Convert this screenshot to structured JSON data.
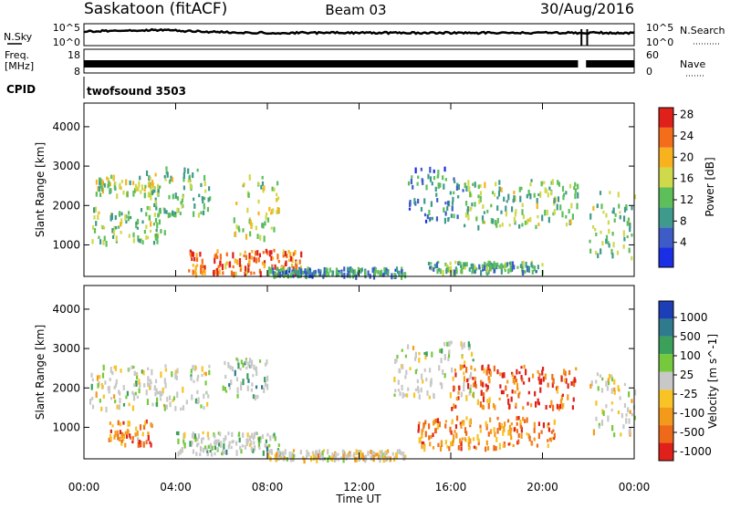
{
  "header": {
    "station": "Saskatoon (fitACF)",
    "beam": "Beam 03",
    "date": "30/Aug/2016"
  },
  "time_axis": {
    "label": "Time UT",
    "ticks": [
      "00:00",
      "04:00",
      "08:00",
      "12:00",
      "16:00",
      "20:00",
      "00:00"
    ],
    "range_hours": [
      0,
      24
    ]
  },
  "strips": {
    "noise": {
      "left_label": "N.Sky",
      "left_ticks": [
        "10^5",
        "10^0"
      ],
      "right_label": "N.Search",
      "right_ticks": [
        "10^5",
        "10^0"
      ]
    },
    "freq": {
      "left_label_1": "Freq.",
      "left_label_2": "[MHz]",
      "left_ticks": [
        "18",
        "8"
      ],
      "right_label": "Nave",
      "right_ticks": [
        "60",
        "0"
      ]
    },
    "cpid": {
      "label": "CPID",
      "value": "twofsound 3503"
    }
  },
  "chart_data": [
    {
      "type": "heatmap",
      "panel": "power",
      "ylabel": "Slant Range [km]",
      "yticks": [
        "1000",
        "2000",
        "3000",
        "4000"
      ],
      "ylim": [
        200,
        4600
      ],
      "colorbar_label": "Power [dB]",
      "colorbar_ticks": [
        "4",
        "8",
        "12",
        "16",
        "20",
        "24",
        "28"
      ],
      "colorbar_range": [
        0,
        30
      ],
      "palette": [
        "#1a2ee6",
        "#3d5cc8",
        "#3e9a8c",
        "#5cbf5a",
        "#cfd94a",
        "#f7b21e",
        "#f46d1a",
        "#e0201a"
      ],
      "echo_regions": [
        {
          "t0": 0.3,
          "t1": 3.5,
          "r0": 1100,
          "r1": 2000,
          "level": 0.45
        },
        {
          "t0": 0.5,
          "t1": 3.0,
          "r0": 2300,
          "r1": 2800,
          "level": 0.5
        },
        {
          "t0": 2.5,
          "t1": 5.5,
          "r0": 1800,
          "r1": 3000,
          "level": 0.45
        },
        {
          "t0": 4.5,
          "t1": 9.5,
          "r0": 300,
          "r1": 900,
          "level": 0.8
        },
        {
          "t0": 6.5,
          "t1": 8.5,
          "r0": 1200,
          "r1": 2800,
          "level": 0.55
        },
        {
          "t0": 8.0,
          "t1": 14.0,
          "r0": 250,
          "r1": 450,
          "level": 0.3
        },
        {
          "t0": 14.0,
          "t1": 16.5,
          "r0": 1600,
          "r1": 3000,
          "level": 0.3
        },
        {
          "t0": 16.5,
          "t1": 21.5,
          "r0": 1500,
          "r1": 2700,
          "level": 0.45
        },
        {
          "t0": 15.0,
          "t1": 20.0,
          "r0": 350,
          "r1": 600,
          "level": 0.35
        },
        {
          "t0": 22.0,
          "t1": 24.0,
          "r0": 700,
          "r1": 2400,
          "level": 0.45
        }
      ]
    },
    {
      "type": "heatmap",
      "panel": "velocity",
      "ylabel": "Slant Range [km]",
      "yticks": [
        "1000",
        "2000",
        "3000",
        "4000"
      ],
      "ylim": [
        200,
        4600
      ],
      "colorbar_label": "Velocity [m s^-1]",
      "colorbar_ticks": [
        "1000",
        "500",
        "100",
        "25",
        "-25",
        "-100",
        "-500",
        "-1000"
      ],
      "palette": [
        "#1c3fb8",
        "#2f7a8c",
        "#3aa05a",
        "#76c93c",
        "#c8c8c8",
        "#f7c325",
        "#f49a1a",
        "#ee6a1a",
        "#e0201a"
      ],
      "echo_regions": [
        {
          "t0": 0.2,
          "t1": 5.5,
          "r0": 1500,
          "r1": 2600,
          "level": 0.5
        },
        {
          "t0": 1.0,
          "t1": 3.0,
          "r0": 600,
          "r1": 1200,
          "level": 0.75
        },
        {
          "t0": 4.0,
          "t1": 8.5,
          "r0": 350,
          "r1": 900,
          "level": 0.4
        },
        {
          "t0": 6.0,
          "t1": 8.0,
          "r0": 1800,
          "r1": 2800,
          "level": 0.35
        },
        {
          "t0": 8.0,
          "t1": 14.0,
          "r0": 220,
          "r1": 450,
          "level": 0.6
        },
        {
          "t0": 13.5,
          "t1": 17.0,
          "r0": 1800,
          "r1": 3200,
          "level": 0.5
        },
        {
          "t0": 16.0,
          "t1": 21.5,
          "r0": 1500,
          "r1": 2600,
          "level": 0.85
        },
        {
          "t0": 14.5,
          "t1": 20.5,
          "r0": 500,
          "r1": 1300,
          "level": 0.75
        },
        {
          "t0": 22.0,
          "t1": 24.0,
          "r0": 800,
          "r1": 2400,
          "level": 0.55
        }
      ]
    }
  ]
}
